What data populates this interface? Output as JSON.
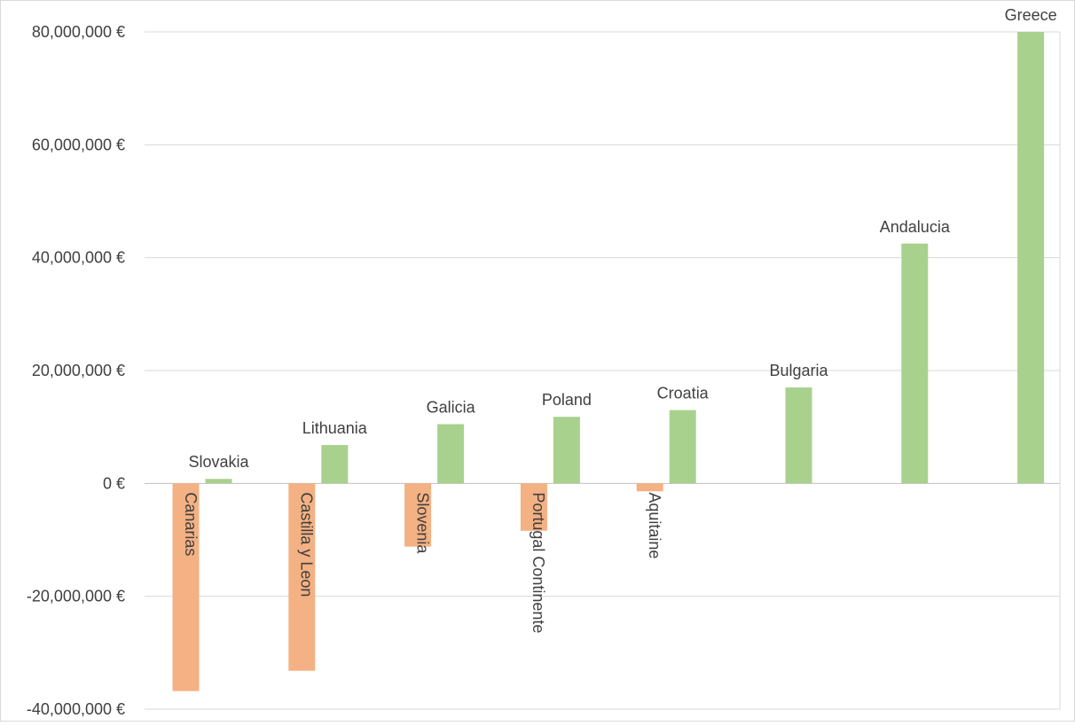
{
  "chart_data": {
    "type": "bar",
    "title": "",
    "xlabel": "",
    "ylabel": "",
    "ylim": [
      -40000000,
      80000000
    ],
    "yticks": [
      80000000,
      60000000,
      40000000,
      20000000,
      0,
      -20000000,
      -40000000
    ],
    "ytick_labels": [
      "80,000,000 €",
      "60,000,000 €",
      "40,000,000 €",
      "20,000,000 €",
      "0 €",
      "-20,000,000 €",
      "-40,000,000 €"
    ],
    "grid": true,
    "legend": "none",
    "colors": {
      "negative": "#F4B183",
      "positive": "#A9D18E",
      "grid": "#D9D9D9",
      "axis": "#BFBFBF",
      "text": "#404040"
    },
    "groups": [
      {
        "negative": {
          "label": "Canarias",
          "value": -36800000
        },
        "positive": {
          "label": "Slovakia",
          "value": 800000
        }
      },
      {
        "negative": {
          "label": "Castilla y Leon",
          "value": -33200000
        },
        "positive": {
          "label": "Lithuania",
          "value": 6800000
        }
      },
      {
        "negative": {
          "label": "Slovenia",
          "value": -11200000
        },
        "positive": {
          "label": "Galicia",
          "value": 10500000
        }
      },
      {
        "negative": {
          "label": "Portugal Continente",
          "value": -8400000
        },
        "positive": {
          "label": "Poland",
          "value": 11800000
        }
      },
      {
        "negative": {
          "label": "Aquitaine",
          "value": -1400000
        },
        "positive": {
          "label": "Croatia",
          "value": 13000000
        }
      },
      {
        "negative": null,
        "positive": {
          "label": "Bulgaria",
          "value": 17000000
        }
      },
      {
        "negative": null,
        "positive": {
          "label": "Andalucia",
          "value": 42500000
        }
      },
      {
        "negative": null,
        "positive": {
          "label": "Greece",
          "value": 80000000
        }
      }
    ]
  }
}
